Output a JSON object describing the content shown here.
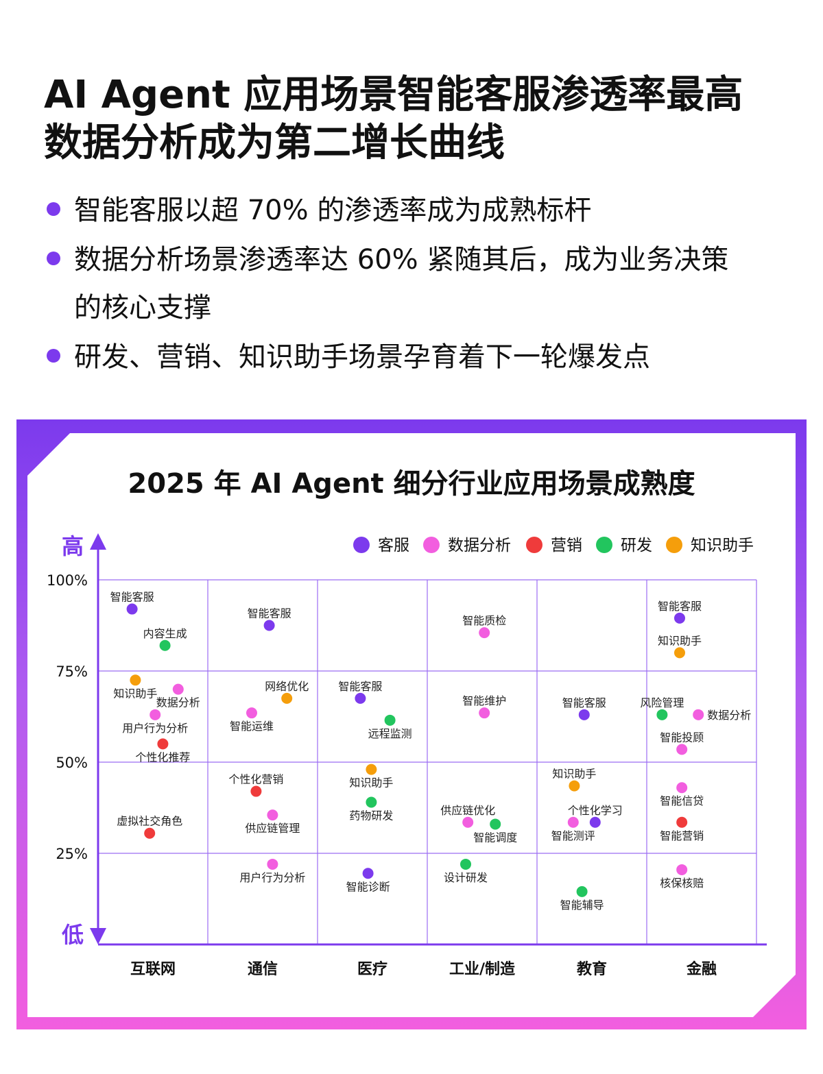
{
  "headline": {
    "line1": "AI Agent 应用场景智能客服渗透率最高",
    "line2": "数据分析成为第二增长曲线"
  },
  "bullets": [
    "智能客服以超 70% 的渗透率成为成熟标杆",
    "数据分析场景渗透率达 60% 紧随其后，成为业务决策",
    "的核心支撑",
    "研发、营销、知识助手场景孕育着下一轮爆发点"
  ],
  "chart_data": {
    "type": "scatter",
    "title": "2025 年 AI Agent 细分行业应用场景成熟度",
    "y_high_label": "高",
    "y_low_label": "低",
    "ylim": [
      0,
      100
    ],
    "y_ticks": [
      "25%",
      "50%",
      "75%",
      "100%"
    ],
    "categories": [
      "互联网",
      "通信",
      "医疗",
      "工业/制造",
      "教育",
      "金融"
    ],
    "legend_position": "top-right",
    "grid": true,
    "series": [
      {
        "name": "客服",
        "color": "#7c3aed"
      },
      {
        "name": "数据分析",
        "color": "#f25edf"
      },
      {
        "name": "营销",
        "color": "#ef3b3b"
      },
      {
        "name": "研发",
        "color": "#22c55e"
      },
      {
        "name": "知识助手",
        "color": "#f59e0b"
      }
    ],
    "points": [
      {
        "label": "智能客服",
        "series": "客服",
        "category": 0,
        "x": 0.31,
        "y": 92,
        "label_pos": "above"
      },
      {
        "label": "内容生成",
        "series": "研发",
        "category": 0,
        "x": 0.61,
        "y": 82,
        "label_pos": "above"
      },
      {
        "label": "知识助手",
        "series": "知识助手",
        "category": 0,
        "x": 0.34,
        "y": 72.5,
        "label_pos": "below"
      },
      {
        "label": "数据分析",
        "series": "数据分析",
        "category": 0,
        "x": 0.73,
        "y": 70,
        "label_pos": "below"
      },
      {
        "label": "用户行为分析",
        "series": "数据分析",
        "category": 0,
        "x": 0.52,
        "y": 63,
        "label_pos": "below"
      },
      {
        "label": "个性化推荐",
        "series": "营销",
        "category": 0,
        "x": 0.59,
        "y": 55,
        "label_pos": "below"
      },
      {
        "label": "虚拟社交角色",
        "series": "营销",
        "category": 0,
        "x": 0.47,
        "y": 30.5,
        "label_pos": "above"
      },
      {
        "label": "智能客服",
        "series": "客服",
        "category": 1,
        "x": 0.56,
        "y": 87.5,
        "label_pos": "above"
      },
      {
        "label": "网络优化",
        "series": "知识助手",
        "category": 1,
        "x": 0.72,
        "y": 67.5,
        "label_pos": "above"
      },
      {
        "label": "智能运维",
        "series": "数据分析",
        "category": 1,
        "x": 0.4,
        "y": 63.5,
        "label_pos": "below"
      },
      {
        "label": "个性化营销",
        "series": "营销",
        "category": 1,
        "x": 0.44,
        "y": 42,
        "label_pos": "above"
      },
      {
        "label": "供应链管理",
        "series": "数据分析",
        "category": 1,
        "x": 0.59,
        "y": 35.5,
        "label_pos": "below"
      },
      {
        "label": "用户行为分析",
        "series": "数据分析",
        "category": 1,
        "x": 0.59,
        "y": 22,
        "label_pos": "below"
      },
      {
        "label": "智能客服",
        "series": "客服",
        "category": 2,
        "x": 0.39,
        "y": 67.5,
        "label_pos": "above"
      },
      {
        "label": "远程监测",
        "series": "研发",
        "category": 2,
        "x": 0.66,
        "y": 61.5,
        "label_pos": "below"
      },
      {
        "label": "知识助手",
        "series": "知识助手",
        "category": 2,
        "x": 0.49,
        "y": 48,
        "label_pos": "below"
      },
      {
        "label": "药物研发",
        "series": "研发",
        "category": 2,
        "x": 0.49,
        "y": 39,
        "label_pos": "below"
      },
      {
        "label": "智能诊断",
        "series": "客服",
        "category": 2,
        "x": 0.46,
        "y": 19.5,
        "label_pos": "below"
      },
      {
        "label": "智能质检",
        "series": "数据分析",
        "category": 3,
        "x": 0.52,
        "y": 85.5,
        "label_pos": "above"
      },
      {
        "label": "智能维护",
        "series": "数据分析",
        "category": 3,
        "x": 0.52,
        "y": 63.5,
        "label_pos": "above"
      },
      {
        "label": "供应链优化",
        "series": "数据分析",
        "category": 3,
        "x": 0.37,
        "y": 33.5,
        "label_pos": "above"
      },
      {
        "label": "智能调度",
        "series": "研发",
        "category": 3,
        "x": 0.62,
        "y": 33,
        "label_pos": "below"
      },
      {
        "label": "设计研发",
        "series": "研发",
        "category": 3,
        "x": 0.35,
        "y": 22,
        "label_pos": "below"
      },
      {
        "label": "智能客服",
        "series": "客服",
        "category": 4,
        "x": 0.43,
        "y": 63,
        "label_pos": "above"
      },
      {
        "label": "知识助手",
        "series": "知识助手",
        "category": 4,
        "x": 0.34,
        "y": 43.5,
        "label_pos": "above"
      },
      {
        "label": "个性化学习",
        "series": "客服",
        "category": 4,
        "x": 0.53,
        "y": 33.5,
        "label_pos": "above"
      },
      {
        "label": "智能测评",
        "series": "数据分析",
        "category": 4,
        "x": 0.33,
        "y": 33.5,
        "label_pos": "below"
      },
      {
        "label": "智能辅导",
        "series": "研发",
        "category": 4,
        "x": 0.41,
        "y": 14.5,
        "label_pos": "below"
      },
      {
        "label": "智能客服",
        "series": "客服",
        "category": 5,
        "x": 0.3,
        "y": 89.5,
        "label_pos": "above"
      },
      {
        "label": "知识助手",
        "series": "知识助手",
        "category": 5,
        "x": 0.3,
        "y": 80,
        "label_pos": "above"
      },
      {
        "label": "风险管理",
        "series": "研发",
        "category": 5,
        "x": 0.14,
        "y": 63,
        "label_pos": "above"
      },
      {
        "label": "数据分析",
        "series": "数据分析",
        "category": 5,
        "x": 0.47,
        "y": 63,
        "label_pos": "right"
      },
      {
        "label": "智能投顾",
        "series": "数据分析",
        "category": 5,
        "x": 0.32,
        "y": 53.5,
        "label_pos": "above"
      },
      {
        "label": "智能信贷",
        "series": "数据分析",
        "category": 5,
        "x": 0.32,
        "y": 43,
        "label_pos": "below"
      },
      {
        "label": "智能营销",
        "series": "营销",
        "category": 5,
        "x": 0.32,
        "y": 33.5,
        "label_pos": "below"
      },
      {
        "label": "核保核赔",
        "series": "数据分析",
        "category": 5,
        "x": 0.32,
        "y": 20.5,
        "label_pos": "below"
      }
    ]
  }
}
